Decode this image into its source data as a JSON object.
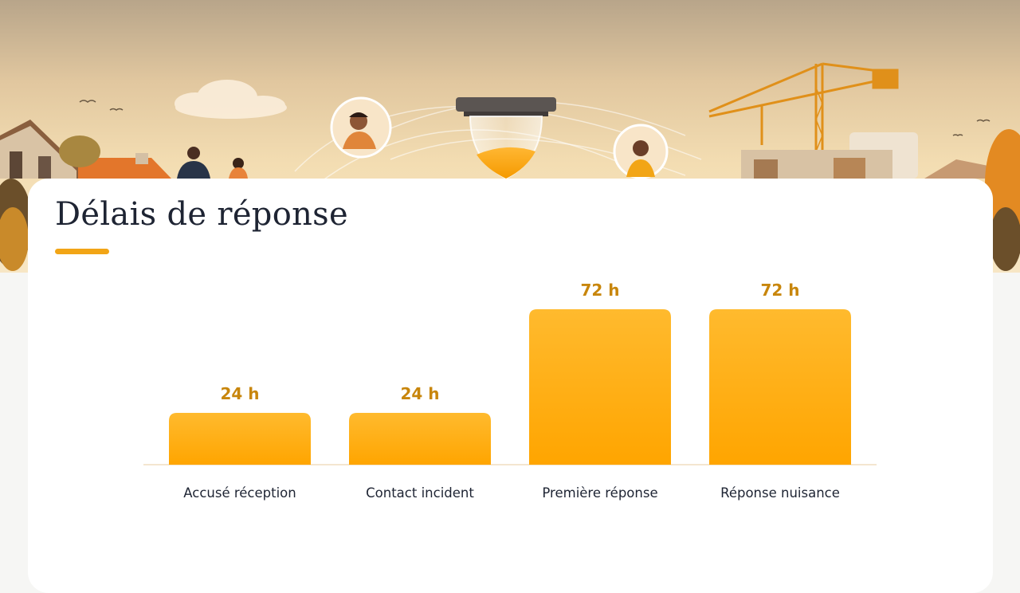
{
  "header": {
    "title": "Délais de réponse"
  },
  "chart_data": {
    "type": "bar",
    "title": "Délais de réponse",
    "categories": [
      "Accusé réception",
      "Contact incident",
      "Première réponse",
      "Réponse nuisance"
    ],
    "values": [
      24,
      24,
      72,
      72
    ],
    "value_labels": [
      "24 h",
      "24 h",
      "72 h",
      "72 h"
    ],
    "unit": "h",
    "ylim": [
      0,
      72
    ],
    "grid": false,
    "legend": "none",
    "colors": {
      "bar_top": "#ffba2e",
      "bar_bottom": "#ffa500",
      "value_text": "#c8860c",
      "accent": "#f2a516"
    }
  }
}
